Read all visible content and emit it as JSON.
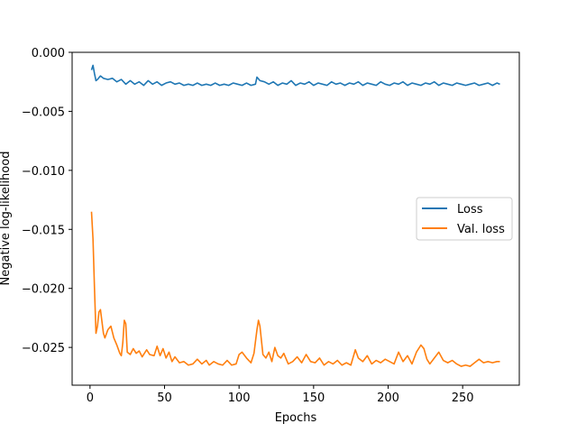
{
  "chart_data": {
    "type": "line",
    "title": "",
    "xlabel": "Epochs",
    "ylabel": "Negative log-likelihood",
    "xlim": [
      -12,
      288
    ],
    "ylim": [
      -0.0282,
      0.0
    ],
    "xticks": [
      0,
      50,
      100,
      150,
      200,
      250
    ],
    "xtick_labels": [
      "0",
      "50",
      "100",
      "150",
      "200",
      "250"
    ],
    "yticks": [
      0.0,
      -0.005,
      -0.01,
      -0.015,
      -0.02,
      -0.025
    ],
    "ytick_labels": [
      "0.000",
      "−0.005",
      "−0.010",
      "−0.015",
      "−0.020",
      "−0.025"
    ],
    "grid": false,
    "legend_position": "center-right",
    "series": [
      {
        "name": "Loss",
        "color": "#1f77b4",
        "x": [
          1,
          2,
          3,
          4,
          5,
          7,
          9,
          12,
          15,
          18,
          21,
          24,
          27,
          30,
          33,
          36,
          39,
          42,
          45,
          48,
          51,
          54,
          57,
          60,
          63,
          66,
          69,
          72,
          75,
          78,
          81,
          84,
          87,
          90,
          93,
          96,
          99,
          102,
          105,
          108,
          111,
          112,
          114,
          117,
          120,
          123,
          126,
          129,
          132,
          135,
          138,
          141,
          144,
          147,
          150,
          153,
          156,
          159,
          162,
          165,
          168,
          171,
          174,
          177,
          180,
          183,
          186,
          189,
          192,
          195,
          198,
          201,
          204,
          207,
          210,
          213,
          216,
          219,
          222,
          225,
          228,
          231,
          234,
          237,
          240,
          243,
          246,
          249,
          252,
          255,
          258,
          261,
          264,
          267,
          270,
          273,
          275
        ],
        "y": [
          -0.0015,
          -0.0011,
          -0.0018,
          -0.0024,
          -0.0023,
          -0.002,
          -0.0022,
          -0.0023,
          -0.0022,
          -0.0025,
          -0.0023,
          -0.0027,
          -0.0024,
          -0.0027,
          -0.0025,
          -0.0028,
          -0.0024,
          -0.0027,
          -0.0025,
          -0.0028,
          -0.0026,
          -0.0025,
          -0.0027,
          -0.0026,
          -0.0028,
          -0.0027,
          -0.0028,
          -0.0026,
          -0.0028,
          -0.0027,
          -0.0028,
          -0.0026,
          -0.0028,
          -0.0027,
          -0.0028,
          -0.0026,
          -0.0027,
          -0.0028,
          -0.0026,
          -0.0028,
          -0.0027,
          -0.0021,
          -0.0024,
          -0.0025,
          -0.0027,
          -0.0025,
          -0.0028,
          -0.0026,
          -0.0027,
          -0.0024,
          -0.0028,
          -0.0026,
          -0.0027,
          -0.0025,
          -0.0028,
          -0.0026,
          -0.0027,
          -0.0028,
          -0.0025,
          -0.0027,
          -0.0026,
          -0.0028,
          -0.0026,
          -0.0027,
          -0.0025,
          -0.0028,
          -0.0026,
          -0.0027,
          -0.0028,
          -0.0025,
          -0.0027,
          -0.0028,
          -0.0026,
          -0.0027,
          -0.0025,
          -0.0028,
          -0.0026,
          -0.0027,
          -0.0028,
          -0.0026,
          -0.0027,
          -0.0025,
          -0.0028,
          -0.0026,
          -0.0027,
          -0.0028,
          -0.0026,
          -0.0027,
          -0.0028,
          -0.0027,
          -0.0026,
          -0.0028,
          -0.0027,
          -0.0026,
          -0.0028,
          -0.0026,
          -0.0027
        ]
      },
      {
        "name": "Val. loss",
        "color": "#ff7f0e",
        "x": [
          1,
          2,
          3,
          4,
          5,
          6,
          7,
          8,
          9,
          10,
          12,
          14,
          16,
          18,
          20,
          21,
          22,
          23,
          24,
          25,
          27,
          29,
          31,
          33,
          35,
          38,
          40,
          43,
          45,
          47,
          49,
          51,
          53,
          55,
          57,
          60,
          63,
          66,
          69,
          72,
          75,
          78,
          80,
          83,
          86,
          89,
          92,
          95,
          98,
          100,
          102,
          105,
          108,
          110,
          112,
          113,
          114,
          116,
          118,
          120,
          122,
          124,
          126,
          128,
          130,
          133,
          136,
          139,
          142,
          145,
          148,
          151,
          154,
          157,
          160,
          163,
          166,
          169,
          172,
          175,
          178,
          180,
          183,
          186,
          189,
          192,
          195,
          198,
          201,
          204,
          207,
          210,
          213,
          216,
          219,
          222,
          224,
          226,
          228,
          231,
          234,
          237,
          240,
          243,
          246,
          249,
          252,
          255,
          258,
          261,
          264,
          267,
          270,
          273,
          275
        ],
        "y": [
          -0.0135,
          -0.0158,
          -0.02,
          -0.0238,
          -0.0232,
          -0.022,
          -0.0218,
          -0.0228,
          -0.0238,
          -0.0242,
          -0.0235,
          -0.0232,
          -0.0242,
          -0.0248,
          -0.0255,
          -0.0257,
          -0.0246,
          -0.0227,
          -0.023,
          -0.0254,
          -0.0256,
          -0.0251,
          -0.0255,
          -0.0253,
          -0.0258,
          -0.0252,
          -0.0256,
          -0.0257,
          -0.0249,
          -0.0257,
          -0.0251,
          -0.0259,
          -0.0254,
          -0.0262,
          -0.0258,
          -0.0263,
          -0.0262,
          -0.0265,
          -0.0264,
          -0.026,
          -0.0264,
          -0.0261,
          -0.0265,
          -0.0262,
          -0.0264,
          -0.0265,
          -0.0261,
          -0.0265,
          -0.0264,
          -0.0256,
          -0.0254,
          -0.0259,
          -0.0263,
          -0.0255,
          -0.0235,
          -0.0227,
          -0.0232,
          -0.0256,
          -0.0259,
          -0.0254,
          -0.0262,
          -0.025,
          -0.0257,
          -0.0259,
          -0.0255,
          -0.0264,
          -0.0262,
          -0.0258,
          -0.0263,
          -0.0256,
          -0.0262,
          -0.0263,
          -0.0259,
          -0.0265,
          -0.0262,
          -0.0264,
          -0.0261,
          -0.0265,
          -0.0263,
          -0.0265,
          -0.0252,
          -0.0259,
          -0.0262,
          -0.0257,
          -0.0264,
          -0.0261,
          -0.0263,
          -0.026,
          -0.0262,
          -0.0264,
          -0.0254,
          -0.0262,
          -0.0257,
          -0.0264,
          -0.0254,
          -0.0248,
          -0.0251,
          -0.026,
          -0.0264,
          -0.0259,
          -0.0254,
          -0.0261,
          -0.0263,
          -0.0261,
          -0.0264,
          -0.0266,
          -0.0265,
          -0.0266,
          -0.0263,
          -0.026,
          -0.0263,
          -0.0262,
          -0.0263,
          -0.0262,
          -0.0262
        ]
      }
    ]
  }
}
